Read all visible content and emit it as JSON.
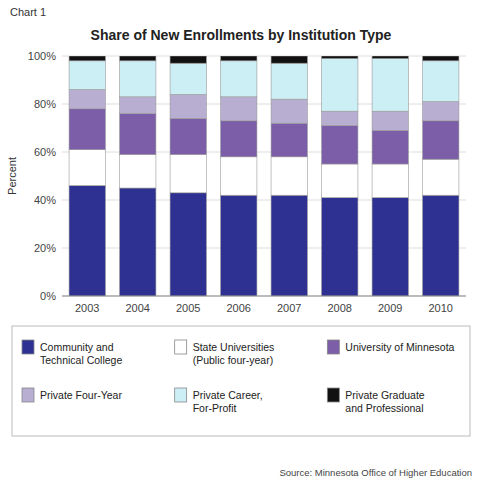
{
  "chart_data": {
    "type": "bar",
    "stacked": true,
    "title": "Share of New Enrollments by Institution Type",
    "annotations": [
      "Chart 1",
      "Source: Minnesota Office of Higher Education"
    ],
    "y_label": "Percent",
    "categories": [
      "2003",
      "2004",
      "2005",
      "2006",
      "2007",
      "2008",
      "2009",
      "2010"
    ],
    "series": [
      {
        "name": "Community and\nTechnical College",
        "color": "#2e3191",
        "values": [
          46,
          45,
          43,
          42,
          42,
          41,
          41,
          42
        ]
      },
      {
        "name": "State Universities\n(Public four-year)",
        "color": "#ffffff",
        "values": [
          15,
          14,
          16,
          16,
          16,
          14,
          14,
          15
        ]
      },
      {
        "name": "University of Minnesota",
        "color": "#7b5ea7",
        "values": [
          17,
          17,
          15,
          15,
          14,
          16,
          14,
          16
        ]
      },
      {
        "name": "Private Four-Year",
        "color": "#b8aed2",
        "values": [
          8,
          7,
          10,
          10,
          10,
          6,
          8,
          8
        ]
      },
      {
        "name": "Private Career,\nFor-Profit",
        "color": "#cceef5",
        "values": [
          12,
          15,
          13,
          15,
          15,
          22,
          22,
          17
        ]
      },
      {
        "name": "Private Graduate\nand Professional",
        "color": "#111111",
        "values": [
          2,
          2,
          3,
          2,
          3,
          1,
          1,
          2
        ]
      }
    ],
    "ylim": [
      0,
      100
    ],
    "yticks": [
      {
        "value": 0,
        "label": "0%"
      },
      {
        "value": 20,
        "label": "20%"
      },
      {
        "value": 40,
        "label": "40%"
      },
      {
        "value": 60,
        "label": "60%"
      },
      {
        "value": 80,
        "label": "80%"
      },
      {
        "value": 100,
        "label": "100%"
      }
    ],
    "grid": true,
    "legend": "bottom"
  }
}
